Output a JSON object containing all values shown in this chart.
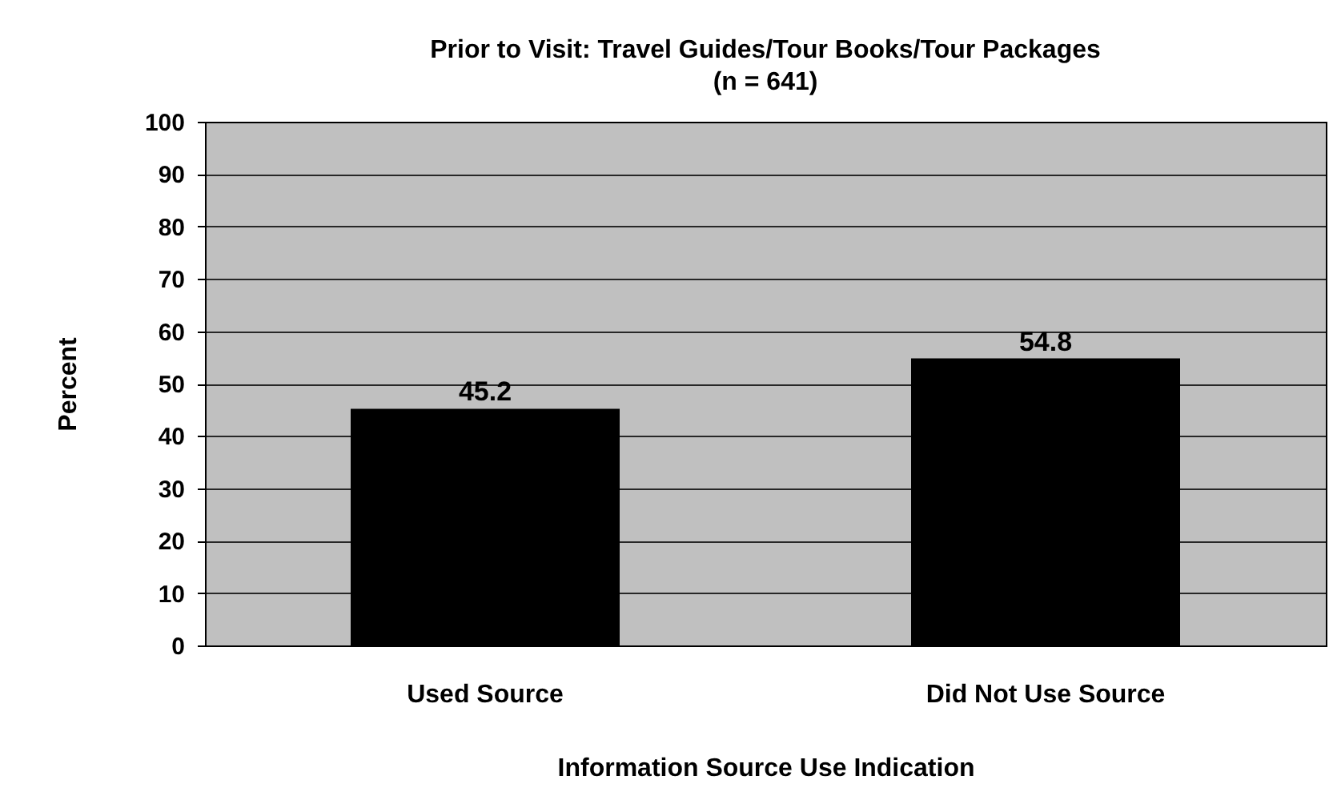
{
  "chart_data": {
    "type": "bar",
    "title": "Prior to Visit: Travel Guides/Tour Books/Tour Packages",
    "subtitle": "(n = 641)",
    "xlabel": "Information Source Use Indication",
    "ylabel": "Percent",
    "categories": [
      "Used Source",
      "Did Not Use Source"
    ],
    "values": [
      45.2,
      54.8
    ],
    "color": "#000000",
    "ylim": [
      0,
      100
    ],
    "yticks": [
      0,
      10,
      20,
      30,
      40,
      50,
      60,
      70,
      80,
      90,
      100
    ],
    "grid": true,
    "data_labels": true
  }
}
